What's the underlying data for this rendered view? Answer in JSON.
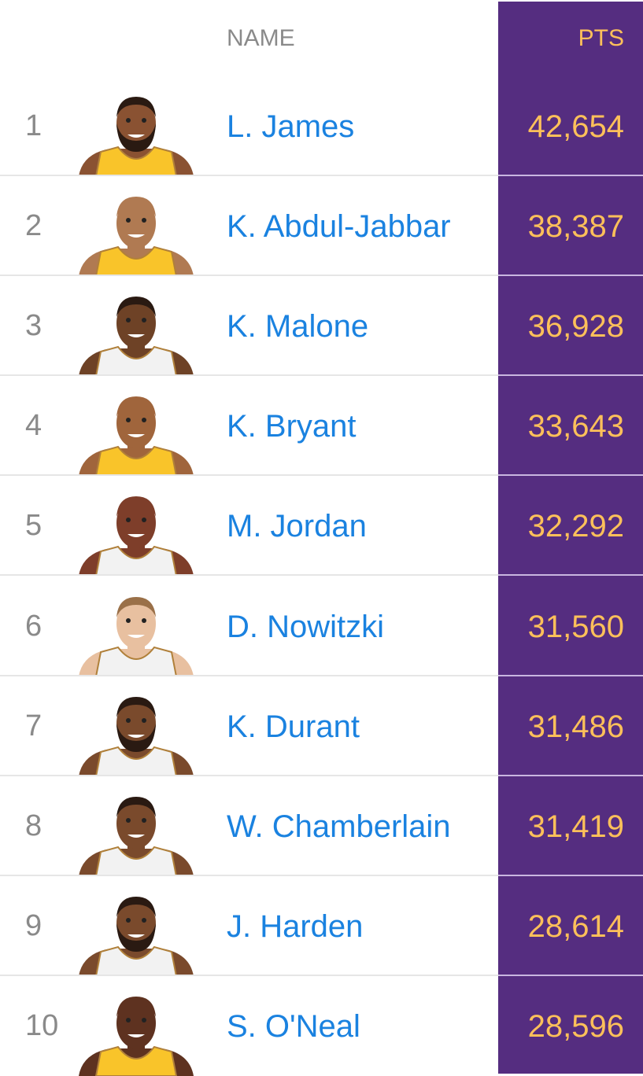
{
  "header": {
    "name_label": "NAME",
    "pts_label": "PTS"
  },
  "colors": {
    "pts_bg": "#552d80",
    "pts_text": "#fdc05a",
    "name_link": "#1a82e0",
    "rank_text": "#8a8a8a"
  },
  "players": [
    {
      "rank": "1",
      "name": "L. James",
      "pts": "42,654",
      "avatar": "player-avatar-icon",
      "skin": "#8a5232",
      "jersey": "#f9c42a",
      "hair": "#2a1a12",
      "beard": true
    },
    {
      "rank": "2",
      "name": "K. Abdul-Jabbar",
      "pts": "38,387",
      "avatar": "player-avatar-icon",
      "skin": "#b07a52",
      "jersey": "#f9c42a",
      "hair": "#b07a52",
      "beard": false
    },
    {
      "rank": "3",
      "name": "K. Malone",
      "pts": "36,928",
      "avatar": "player-avatar-icon",
      "skin": "#6e4226",
      "jersey": "#f2f2f2",
      "hair": "#2a1a12",
      "beard": false
    },
    {
      "rank": "4",
      "name": "K. Bryant",
      "pts": "33,643",
      "avatar": "player-avatar-icon",
      "skin": "#a0653c",
      "jersey": "#f9c42a",
      "hair": "#a0653c",
      "beard": false
    },
    {
      "rank": "5",
      "name": "M. Jordan",
      "pts": "32,292",
      "avatar": "player-avatar-icon",
      "skin": "#7e3e2a",
      "jersey": "#f2f2f2",
      "hair": "#7e3e2a",
      "beard": false
    },
    {
      "rank": "6",
      "name": "D. Nowitzki",
      "pts": "31,560",
      "avatar": "player-avatar-icon",
      "skin": "#e8c0a0",
      "jersey": "#f2f2f2",
      "hair": "#9a7048",
      "beard": false
    },
    {
      "rank": "7",
      "name": "K. Durant",
      "pts": "31,486",
      "avatar": "player-avatar-icon",
      "skin": "#7a4a2c",
      "jersey": "#f2f2f2",
      "hair": "#2a1a12",
      "beard": true
    },
    {
      "rank": "8",
      "name": "W. Chamberlain",
      "pts": "31,419",
      "avatar": "player-avatar-icon",
      "skin": "#7a4a2c",
      "jersey": "#f2f2f2",
      "hair": "#2a1a12",
      "beard": false
    },
    {
      "rank": "9",
      "name": "J. Harden",
      "pts": "28,614",
      "avatar": "player-avatar-icon",
      "skin": "#7a4a2c",
      "jersey": "#f2f2f2",
      "hair": "#2a1a12",
      "beard": true
    },
    {
      "rank": "10",
      "name": "S. O'Neal",
      "pts": "28,596",
      "avatar": "player-avatar-icon",
      "skin": "#5e3220",
      "jersey": "#f9c42a",
      "hair": "#5e3220",
      "beard": false
    }
  ]
}
